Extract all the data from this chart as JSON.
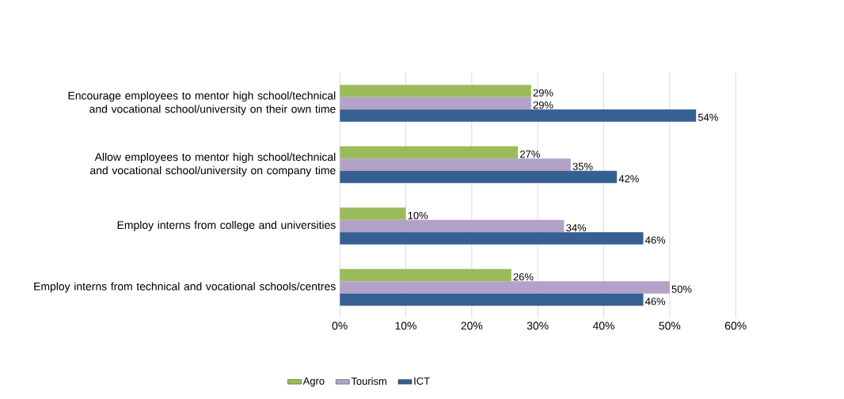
{
  "chart_data": {
    "type": "bar",
    "orientation": "horizontal",
    "categories": [
      "Encourage employees to mentor high school/technical and vocational school/university on their own time",
      "Allow employees to mentor high school/technical and vocational school/university on company time",
      "Employ interns from college and universities",
      "Employ interns from technical and vocational schools/centres"
    ],
    "series": [
      {
        "name": "Agro",
        "color": "#9bbb59",
        "values": [
          29,
          27,
          10,
          26
        ],
        "value_labels": [
          "29%",
          "27%",
          "10%",
          "26%"
        ]
      },
      {
        "name": "Tourism",
        "color": "#b3a2c7",
        "values": [
          29,
          35,
          34,
          50
        ],
        "value_labels": [
          "29%",
          "35%",
          "34%",
          "50%"
        ]
      },
      {
        "name": "ICT",
        "color": "#376092",
        "values": [
          54,
          42,
          46,
          46
        ],
        "value_labels": [
          "54%",
          "42%",
          "46%",
          "46%"
        ]
      }
    ],
    "xlim": [
      0,
      60
    ],
    "xticks": [
      {
        "value": 0,
        "label": "0%"
      },
      {
        "value": 10,
        "label": "10%"
      },
      {
        "value": 20,
        "label": "20%"
      },
      {
        "value": 30,
        "label": "30%"
      },
      {
        "value": 40,
        "label": "40%"
      },
      {
        "value": 50,
        "label": "50%"
      },
      {
        "value": 60,
        "label": "60%"
      }
    ],
    "grid": "x",
    "legend": "bottom"
  }
}
